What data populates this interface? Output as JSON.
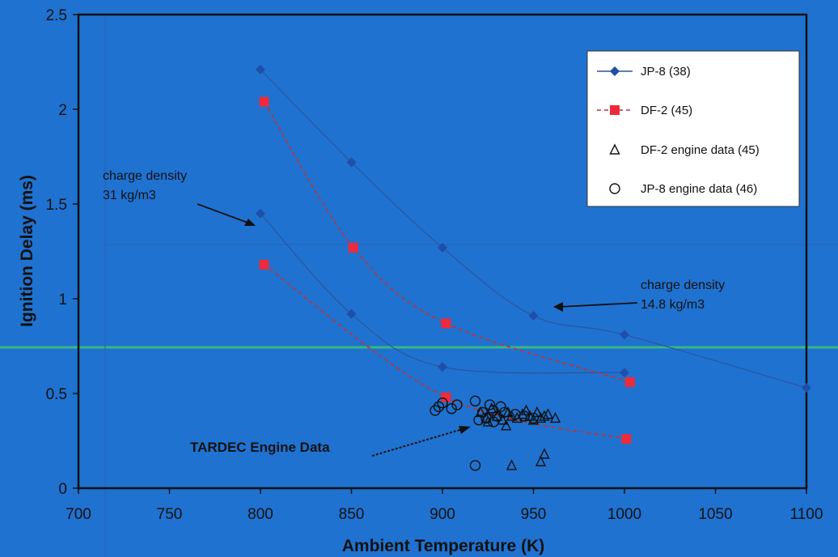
{
  "chart_data": {
    "type": "scatter",
    "xlabel": "Ambient Temperature (K)",
    "ylabel": "Ignition Delay (ms)",
    "xlim": [
      700,
      1100
    ],
    "ylim": [
      0,
      2.5
    ],
    "x_ticks": [
      "700",
      "750",
      "800",
      "850",
      "900",
      "950",
      "1000",
      "1050",
      "1100"
    ],
    "y_ticks": [
      "0",
      "0.5",
      "1",
      "1.5",
      "2",
      "2.5"
    ],
    "legend_position": "top-right",
    "series": [
      {
        "name": "JP-8  (38)",
        "marker": "diamond",
        "line": "solid",
        "color": "#1f4fa8",
        "groups": [
          {
            "x": [
              800,
              850,
              900,
              950,
              1000,
              1100
            ],
            "y": [
              2.21,
              1.72,
              1.27,
              0.91,
              0.81,
              0.53
            ]
          },
          {
            "x": [
              800,
              850,
              900,
              1000
            ],
            "y": [
              1.45,
              0.92,
              0.64,
              0.61
            ]
          }
        ]
      },
      {
        "name": "DF-2  (45)",
        "marker": "square",
        "line": "dashed",
        "color": "#ee2a3c",
        "groups": [
          {
            "x": [
              802,
              851,
              902,
              1003
            ],
            "y": [
              2.04,
              1.27,
              0.87,
              0.56
            ]
          },
          {
            "x": [
              802,
              902,
              1001
            ],
            "y": [
              1.18,
              0.48,
              0.26
            ]
          }
        ]
      },
      {
        "name": "DF-2 engine data (45)",
        "marker": "triangle",
        "color": "#111111",
        "x": [
          921,
          924,
          927,
          930,
          933,
          936,
          938,
          941,
          944,
          946,
          948,
          950,
          952,
          954,
          956,
          958,
          962,
          925,
          935,
          938,
          954,
          956
        ],
        "y": [
          0.4,
          0.37,
          0.42,
          0.38,
          0.36,
          0.4,
          0.38,
          0.37,
          0.39,
          0.41,
          0.38,
          0.36,
          0.4,
          0.37,
          0.38,
          0.39,
          0.37,
          0.35,
          0.33,
          0.12,
          0.14,
          0.18
        ]
      },
      {
        "name": "JP-8 engine data (46)",
        "marker": "circle",
        "color": "#111111",
        "x": [
          896,
          898,
          900,
          905,
          908,
          918,
          922,
          924,
          926,
          928,
          930,
          932,
          934,
          940,
          945,
          950,
          920,
          928,
          918
        ],
        "y": [
          0.41,
          0.43,
          0.45,
          0.42,
          0.44,
          0.46,
          0.4,
          0.37,
          0.44,
          0.41,
          0.38,
          0.43,
          0.4,
          0.39,
          0.38,
          0.37,
          0.36,
          0.35,
          0.12
        ]
      }
    ],
    "annotations": [
      {
        "lines": [
          "charge density",
          "31 kg/m3"
        ]
      },
      {
        "lines": [
          "charge density",
          "14.8 kg/m3"
        ]
      },
      {
        "lines": [
          "TARDEC Engine Data"
        ]
      }
    ]
  },
  "style": {
    "background": "#1f72d0",
    "axis_color": "#111111",
    "accent_band": "#39d36a"
  }
}
